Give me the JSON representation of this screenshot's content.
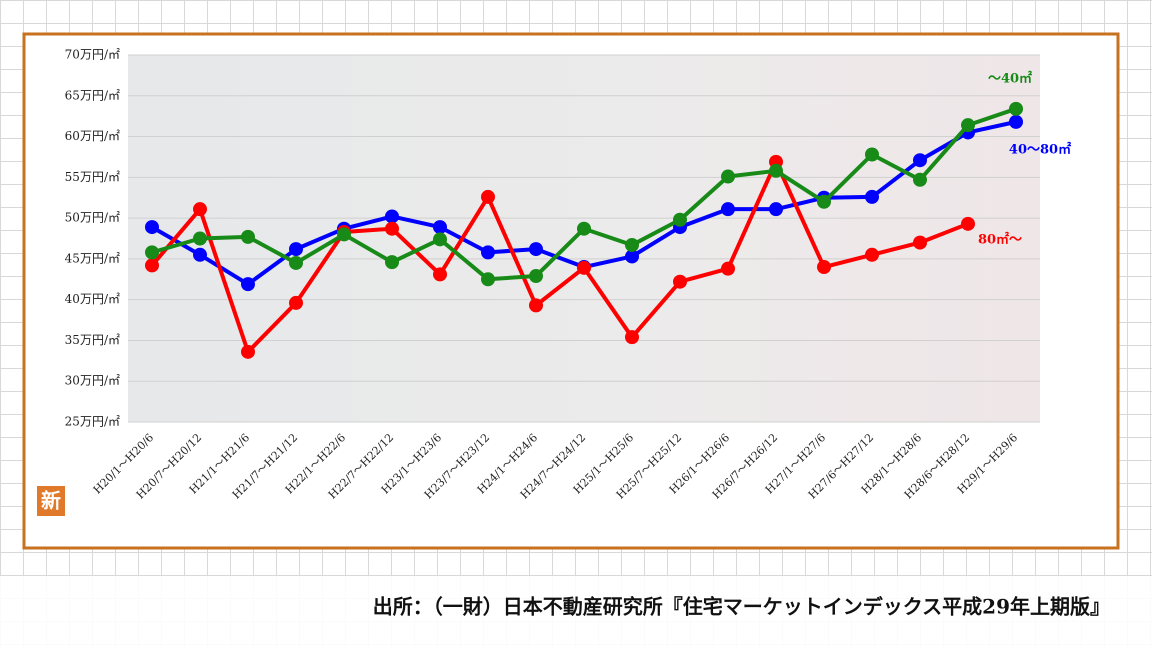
{
  "chart_data": {
    "type": "line",
    "categories": [
      "H20/1～H20/6",
      "H20/7～H20/12",
      "H21/1～H21/6",
      "H21/7～H21/12",
      "H22/1～H22/6",
      "H22/7～H22/12",
      "H23/1～H23/6",
      "H23/7～H23/12",
      "H24/1～H24/6",
      "H24/7～H24/12",
      "H25/1～H25/6",
      "H25/7～H25/12",
      "H26/1～H26/6",
      "H26/7～H26/12",
      "H27/1～H27/6",
      "H27/6～H27/12",
      "H28/1～H28/6",
      "H28/6～H28/12",
      "H29/1～H29/6"
    ],
    "series": [
      {
        "name": "40～80㎡",
        "color": "#0000ff",
        "values": [
          48.9,
          45.5,
          41.9,
          46.2,
          48.7,
          50.2,
          48.9,
          45.8,
          46.2,
          44.0,
          45.3,
          48.9,
          51.1,
          51.1,
          52.5,
          52.6,
          57.1,
          60.5,
          61.8
        ]
      },
      {
        "name": "80㎡～",
        "color": "#ff0000",
        "values": [
          44.2,
          51.1,
          33.6,
          39.6,
          48.3,
          48.7,
          43.1,
          52.6,
          39.3,
          43.9,
          35.4,
          42.2,
          43.8,
          56.9,
          44.0,
          45.5,
          47.0,
          49.3,
          null
        ]
      },
      {
        "name": "～40㎡",
        "color": "#178a17",
        "values": [
          45.8,
          47.5,
          47.7,
          44.5,
          48.0,
          44.6,
          47.4,
          42.5,
          42.9,
          48.7,
          46.7,
          49.8,
          55.1,
          55.8,
          52.0,
          57.8,
          54.7,
          61.4,
          63.4
        ]
      }
    ],
    "ylim": [
      25,
      70
    ],
    "yticks": [
      {
        "value": 25,
        "label": "25万円/㎡"
      },
      {
        "value": 30,
        "label": "30万円/㎡"
      },
      {
        "value": 35,
        "label": "35万円/㎡"
      },
      {
        "value": 40,
        "label": "40万円/㎡"
      },
      {
        "value": 45,
        "label": "45万円/㎡"
      },
      {
        "value": 50,
        "label": "50万円/㎡"
      },
      {
        "value": 55,
        "label": "55万円/㎡"
      },
      {
        "value": 60,
        "label": "60万円/㎡"
      },
      {
        "value": 65,
        "label": "65万円/㎡"
      },
      {
        "value": 70,
        "label": "70万円/㎡"
      }
    ],
    "grid": true,
    "badge": "新",
    "source": "出所：（一財）日本不動産研究所『住宅マーケットインデックス平成29年上期版』"
  }
}
